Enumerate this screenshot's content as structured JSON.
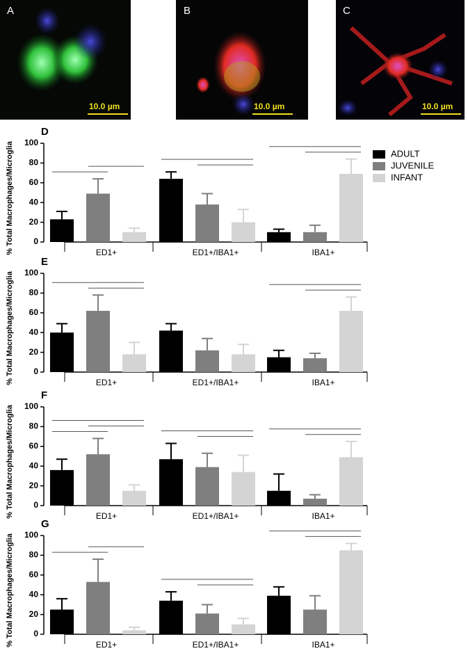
{
  "image_panels": [
    {
      "label": "A",
      "scale": "10.0 µm"
    },
    {
      "label": "B",
      "scale": "10.0 µm"
    },
    {
      "label": "C",
      "scale": "10.0 µm"
    }
  ],
  "chart_data": [
    {
      "type": "bar",
      "panel_label": "D",
      "ylabel": "% Total Macrophages/Microglia",
      "categories": [
        "ED1+",
        "ED1+/IBA1+",
        "IBA1+"
      ],
      "series": [
        {
          "name": "ADULT",
          "color": "#000000",
          "values": [
            23,
            64,
            10
          ],
          "errors": [
            8,
            7,
            3
          ]
        },
        {
          "name": "JUVENILE",
          "color": "#7f7f7f",
          "values": [
            49,
            38,
            10
          ],
          "errors": [
            15,
            11,
            7
          ]
        },
        {
          "name": "INFANT",
          "color": "#d4d4d4",
          "values": [
            10,
            20,
            69
          ],
          "errors": [
            4,
            13,
            15
          ]
        }
      ],
      "comparisons": [
        {
          "category": 0,
          "from": 0,
          "to": 1
        },
        {
          "category": 0,
          "from": 1,
          "to": 2
        },
        {
          "category": 1,
          "from": 1,
          "to": 2
        },
        {
          "category": 1,
          "from": 0,
          "to": 2
        },
        {
          "category": 2,
          "from": 1,
          "to": 2
        },
        {
          "category": 2,
          "from": 0,
          "to": 2
        }
      ],
      "ylim": [
        0,
        100
      ],
      "yticks": [
        0,
        20,
        40,
        60,
        80,
        100
      ],
      "legend": true
    },
    {
      "type": "bar",
      "panel_label": "E",
      "ylabel": "% Total Macrophages/Microglia",
      "categories": [
        "ED1+",
        "ED1+/IBA1+",
        "IBA1+"
      ],
      "series": [
        {
          "name": "ADULT",
          "color": "#000000",
          "values": [
            40,
            42,
            15
          ],
          "errors": [
            9,
            7,
            7
          ]
        },
        {
          "name": "JUVENILE",
          "color": "#7f7f7f",
          "values": [
            62,
            22,
            14
          ],
          "errors": [
            16,
            12,
            5
          ]
        },
        {
          "name": "INFANT",
          "color": "#d4d4d4",
          "values": [
            18,
            18,
            62
          ],
          "errors": [
            12,
            10,
            14
          ]
        }
      ],
      "comparisons": [
        {
          "category": 0,
          "from": 1,
          "to": 2
        },
        {
          "category": 0,
          "from": 0,
          "to": 2
        },
        {
          "category": 2,
          "from": 1,
          "to": 2
        },
        {
          "category": 2,
          "from": 0,
          "to": 2
        }
      ],
      "ylim": [
        0,
        100
      ],
      "yticks": [
        0,
        20,
        40,
        60,
        80,
        100
      ],
      "legend": false
    },
    {
      "type": "bar",
      "panel_label": "F",
      "ylabel": "% Total Macrophages/Microglia",
      "categories": [
        "ED1+",
        "ED1+/IBA1+",
        "IBA1+"
      ],
      "series": [
        {
          "name": "ADULT",
          "color": "#000000",
          "values": [
            36,
            47,
            15
          ],
          "errors": [
            11,
            16,
            17
          ]
        },
        {
          "name": "JUVENILE",
          "color": "#7f7f7f",
          "values": [
            52,
            39,
            7
          ],
          "errors": [
            16,
            14,
            4
          ]
        },
        {
          "name": "INFANT",
          "color": "#d4d4d4",
          "values": [
            15,
            34,
            49
          ],
          "errors": [
            6,
            17,
            16
          ]
        }
      ],
      "comparisons": [
        {
          "category": 0,
          "from": 0,
          "to": 1
        },
        {
          "category": 0,
          "from": 1,
          "to": 2
        },
        {
          "category": 0,
          "from": 0,
          "to": 2
        },
        {
          "category": 1,
          "from": 1,
          "to": 2
        },
        {
          "category": 1,
          "from": 0,
          "to": 2
        },
        {
          "category": 2,
          "from": 1,
          "to": 2
        },
        {
          "category": 2,
          "from": 0,
          "to": 2
        }
      ],
      "ylim": [
        0,
        100
      ],
      "yticks": [
        0,
        20,
        40,
        60,
        80,
        100
      ],
      "legend": false
    },
    {
      "type": "bar",
      "panel_label": "G",
      "ylabel": "% Total Macrophages/Microglia",
      "categories": [
        "ED1+",
        "ED1+/IBA1+",
        "IBA1+"
      ],
      "series": [
        {
          "name": "ADULT",
          "color": "#000000",
          "values": [
            25,
            34,
            39
          ],
          "errors": [
            11,
            9,
            9
          ]
        },
        {
          "name": "JUVENILE",
          "color": "#7f7f7f",
          "values": [
            53,
            21,
            25
          ],
          "errors": [
            23,
            9,
            14
          ]
        },
        {
          "name": "INFANT",
          "color": "#d4d4d4",
          "values": [
            4,
            10,
            85
          ],
          "errors": [
            3,
            6,
            7
          ]
        }
      ],
      "comparisons": [
        {
          "category": 0,
          "from": 0,
          "to": 1
        },
        {
          "category": 0,
          "from": 1,
          "to": 2
        },
        {
          "category": 1,
          "from": 1,
          "to": 2
        },
        {
          "category": 1,
          "from": 0,
          "to": 2
        },
        {
          "category": 2,
          "from": 1,
          "to": 2
        },
        {
          "category": 2,
          "from": 0,
          "to": 2
        }
      ],
      "ylim": [
        0,
        100
      ],
      "yticks": [
        0,
        20,
        40,
        60,
        80,
        100
      ],
      "legend": false
    }
  ]
}
